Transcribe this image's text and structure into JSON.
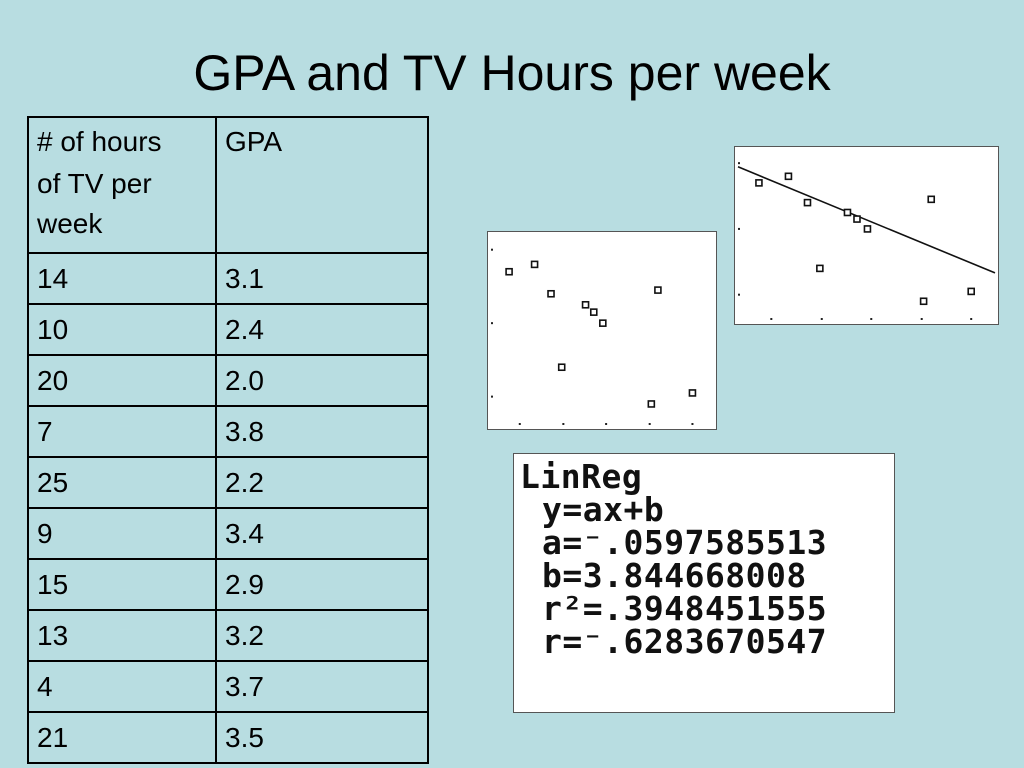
{
  "title": "GPA and TV Hours per week",
  "table": {
    "header_col1_line1": "# of hours",
    "header_col1_rest": "of TV per week",
    "header_col2": "GPA",
    "rows": [
      {
        "hours": "14",
        "gpa": "3.1"
      },
      {
        "hours": "10",
        "gpa": "2.4"
      },
      {
        "hours": "20",
        "gpa": "2.0"
      },
      {
        "hours": "7",
        "gpa": "3.8"
      },
      {
        "hours": "25",
        "gpa": "2.2"
      },
      {
        "hours": "9",
        "gpa": "3.4"
      },
      {
        "hours": "15",
        "gpa": "2.9"
      },
      {
        "hours": "13",
        "gpa": "3.2"
      },
      {
        "hours": "4",
        "gpa": "3.7"
      },
      {
        "hours": "21",
        "gpa": "3.5"
      }
    ]
  },
  "linreg": {
    "line1": "LinReg",
    "line2": "y=ax+b",
    "line3": "a=⁻.0597585513",
    "line4": "b=3.844668008",
    "line5": "r²=.3948451555",
    "line6": "r=⁻.6283670547"
  },
  "chart_data": [
    {
      "type": "scatter",
      "title": "",
      "xlabel": "",
      "ylabel": "",
      "grid": false,
      "axis_ticks": "dots",
      "points": [
        {
          "x": 2.2,
          "y": 3.6
        },
        {
          "x": 5.3,
          "y": 3.7
        },
        {
          "x": 7.3,
          "y": 3.3
        },
        {
          "x": 11.5,
          "y": 3.15
        },
        {
          "x": 12.5,
          "y": 3.05
        },
        {
          "x": 13.6,
          "y": 2.9
        },
        {
          "x": 8.6,
          "y": 2.3
        },
        {
          "x": 20.3,
          "y": 3.35
        },
        {
          "x": 19.5,
          "y": 1.8
        },
        {
          "x": 24.5,
          "y": 1.95
        }
      ],
      "xlim": [
        0,
        27
      ],
      "ylim": [
        1.5,
        4.1
      ],
      "xticks": [
        3.5,
        8.8,
        14.0,
        19.3,
        24.5
      ],
      "yticks": [
        1.9,
        2.9,
        3.9
      ]
    },
    {
      "type": "scatter",
      "title": "",
      "xlabel": "",
      "ylabel": "",
      "grid": false,
      "axis_ticks": "dots",
      "points": [
        {
          "x": 2.2,
          "y": 3.6
        },
        {
          "x": 5.3,
          "y": 3.7
        },
        {
          "x": 7.3,
          "y": 3.3
        },
        {
          "x": 11.5,
          "y": 3.15
        },
        {
          "x": 12.5,
          "y": 3.05
        },
        {
          "x": 13.6,
          "y": 2.9
        },
        {
          "x": 8.6,
          "y": 2.3
        },
        {
          "x": 20.3,
          "y": 3.35
        },
        {
          "x": 19.5,
          "y": 1.8
        },
        {
          "x": 24.5,
          "y": 1.95
        }
      ],
      "regression": {
        "a": -0.0597585513,
        "b": 3.844668008
      },
      "xlim": [
        0,
        27
      ],
      "ylim": [
        1.5,
        4.1
      ],
      "xticks": [
        3.5,
        8.8,
        14.0,
        19.3,
        24.5
      ],
      "yticks": [
        1.9,
        2.9,
        3.9
      ]
    }
  ]
}
